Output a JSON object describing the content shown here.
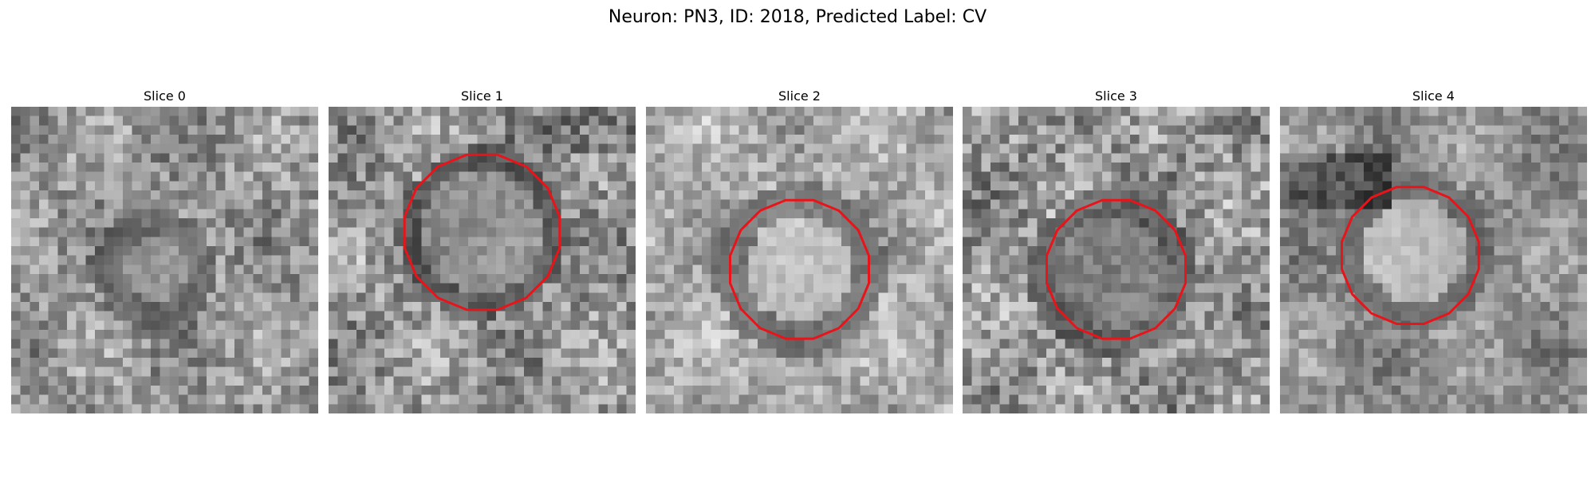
{
  "figure": {
    "title": "Neuron: PN3, ID: 2018, Predicted Label: CV"
  },
  "panels": [
    {
      "title": "Slice 0",
      "has_outline": false
    },
    {
      "title": "Slice 1",
      "has_outline": true
    },
    {
      "title": "Slice 2",
      "has_outline": true
    },
    {
      "title": "Slice 3",
      "has_outline": true
    },
    {
      "title": "Slice 4",
      "has_outline": true
    }
  ],
  "colors": {
    "outline": "#e8141a",
    "background": "#ffffff"
  }
}
